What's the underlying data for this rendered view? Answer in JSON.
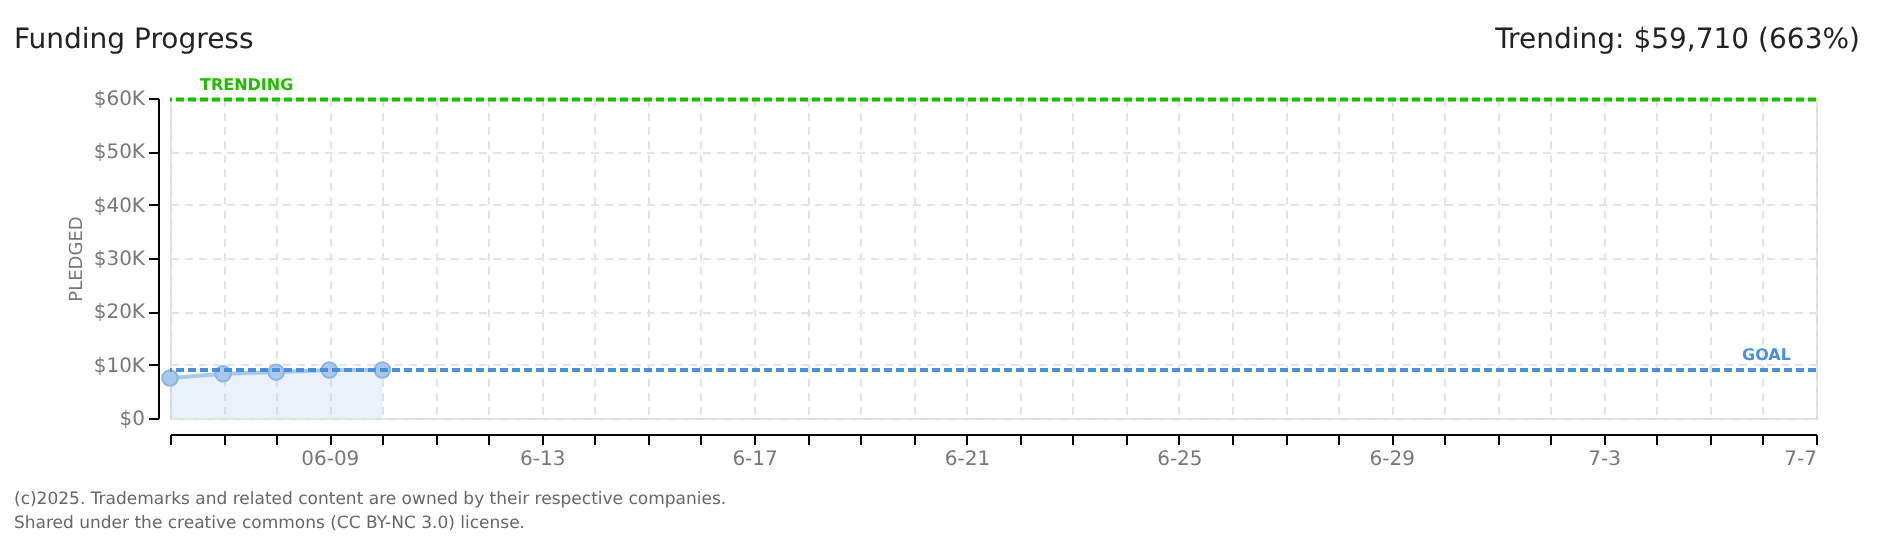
{
  "chart_data": {
    "type": "area",
    "title": "Funding Progress",
    "subtitle": "Trending: $59,710 (663%)",
    "ylabel": "PLEDGED",
    "x": [
      "2025-06-06",
      "2025-06-07",
      "2025-06-08",
      "2025-06-09",
      "2025-06-10"
    ],
    "values": [
      7500,
      8300,
      8600,
      9000,
      9000
    ],
    "color": "#a9c8ee",
    "marker": "circle",
    "xlim": [
      "2025-06-06",
      "2025-07-07"
    ],
    "xticks": [
      {
        "value": "2025-06-06",
        "label": null
      },
      {
        "value": "2025-06-07",
        "label": null
      },
      {
        "value": "2025-06-08",
        "label": null
      },
      {
        "value": "2025-06-09",
        "label": "06-09"
      },
      {
        "value": "2025-06-10",
        "label": null
      },
      {
        "value": "2025-06-11",
        "label": null
      },
      {
        "value": "2025-06-12",
        "label": null
      },
      {
        "value": "2025-06-13",
        "label": "6-13"
      },
      {
        "value": "2025-06-14",
        "label": null
      },
      {
        "value": "2025-06-15",
        "label": null
      },
      {
        "value": "2025-06-16",
        "label": null
      },
      {
        "value": "2025-06-17",
        "label": "6-17"
      },
      {
        "value": "2025-06-18",
        "label": null
      },
      {
        "value": "2025-06-19",
        "label": null
      },
      {
        "value": "2025-06-20",
        "label": null
      },
      {
        "value": "2025-06-21",
        "label": "6-21"
      },
      {
        "value": "2025-06-22",
        "label": null
      },
      {
        "value": "2025-06-23",
        "label": null
      },
      {
        "value": "2025-06-24",
        "label": null
      },
      {
        "value": "2025-06-25",
        "label": "6-25"
      },
      {
        "value": "2025-06-26",
        "label": null
      },
      {
        "value": "2025-06-27",
        "label": null
      },
      {
        "value": "2025-06-28",
        "label": null
      },
      {
        "value": "2025-06-29",
        "label": "6-29"
      },
      {
        "value": "2025-06-30",
        "label": null
      },
      {
        "value": "2025-07-01",
        "label": null
      },
      {
        "value": "2025-07-02",
        "label": null
      },
      {
        "value": "2025-07-03",
        "label": "7-3"
      },
      {
        "value": "2025-07-04",
        "label": null
      },
      {
        "value": "2025-07-05",
        "label": null
      },
      {
        "value": "2025-07-06",
        "label": null
      },
      {
        "value": "2025-07-07",
        "label": "7-7"
      }
    ],
    "ylim": [
      0,
      60000
    ],
    "yticks": [
      {
        "value": 0,
        "label": "$0"
      },
      {
        "value": 10000,
        "label": "$10K"
      },
      {
        "value": 20000,
        "label": "$20K"
      },
      {
        "value": 30000,
        "label": "$30K"
      },
      {
        "value": 40000,
        "label": "$40K"
      },
      {
        "value": 50000,
        "label": "$50K"
      },
      {
        "value": 60000,
        "label": "$60K"
      }
    ],
    "grid": true,
    "ref_lines": [
      {
        "axis": "y",
        "value": 59710,
        "label": "TRENDING",
        "color": "#22bb00",
        "line_style": "dashed"
      },
      {
        "axis": "y",
        "value": 9000,
        "label": "GOAL",
        "color": "#4a90d9",
        "line_style": "dashed"
      }
    ],
    "annotations": [
      "(c)2025. Trademarks and related content are owned by their respective companies.",
      "Shared under the creative commons (CC BY-NC 3.0) license."
    ]
  }
}
